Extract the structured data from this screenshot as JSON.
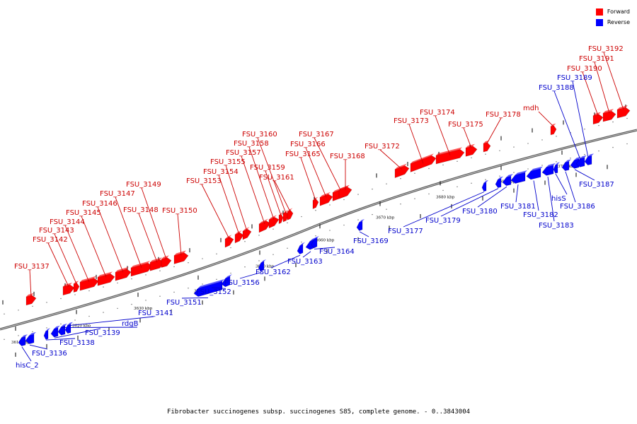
{
  "legend": {
    "forward": {
      "label": "Forward",
      "color": "#ff0000"
    },
    "reverse": {
      "label": "Reverse",
      "color": "#0000ff"
    }
  },
  "caption": "Fibrobacter succinogenes subsp. succinogenes S85, complete genome. - 0..3843004",
  "colors": {
    "forward_label": "#cc0000",
    "reverse_label": "#0000cc",
    "backbone": "#888888"
  },
  "ticks": [
    "3610 kbp",
    "3620 kbp",
    "3630 kbp",
    "3640 kbp",
    "3650 kbp",
    "3660 kbp",
    "3670 kbp",
    "3680 kbp",
    "3690 kbp",
    "3700 kbp"
  ],
  "forward_genes": [
    "FSU_3137",
    "FSU_3142",
    "FSU_3143",
    "FSU_3144",
    "FSU_3145",
    "FSU_3146",
    "FSU_3147",
    "FSU_3148",
    "FSU_3149",
    "FSU_3150",
    "FSU_3153",
    "FSU_3154",
    "FSU_3155",
    "FSU_3157",
    "FSU_3158",
    "FSU_3159",
    "FSU_3160",
    "FSU_3161",
    "FSU_3165",
    "FSU_3166",
    "FSU_3167",
    "FSU_3168",
    "FSU_3172",
    "FSU_3173",
    "FSU_3174",
    "FSU_3175",
    "FSU_3178",
    "mdh",
    "FSU_3190",
    "FSU_3191",
    "FSU_3192"
  ],
  "reverse_genes": [
    "hisC_2",
    "FSU_3136",
    "FSU_3138",
    "FSU_3139",
    "rdgB",
    "FSU_3141",
    "FSU_3151",
    "FSU_3152",
    "FSU_3156",
    "FSU_3162",
    "FSU_3163",
    "FSU_3164",
    "FSU_3169",
    "FSU_3177",
    "FSU_3179",
    "FSU_3180",
    "FSU_3181",
    "FSU_3182",
    "FSU_3183",
    "hisS",
    "FSU_3186",
    "FSU_3187",
    "FSU_3188",
    "FSU_3189"
  ]
}
